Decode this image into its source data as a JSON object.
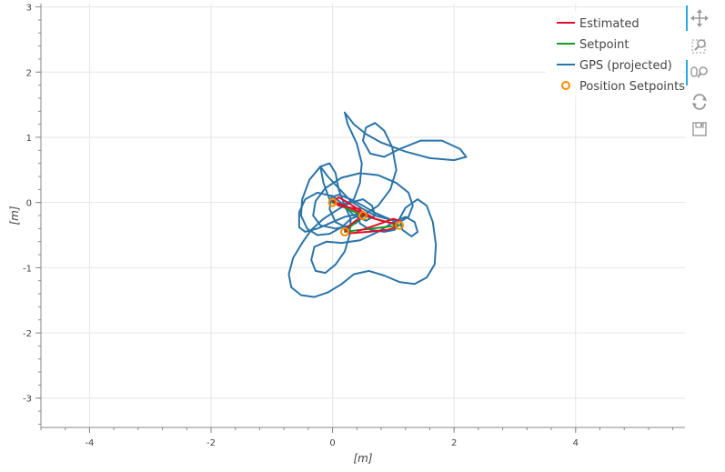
{
  "chart_data": {
    "type": "line",
    "title": "",
    "xlabel": "[m]",
    "ylabel": "[m]",
    "xlim": [
      -4.8,
      5.8
    ],
    "ylim": [
      -3.45,
      3.05
    ],
    "x_ticks": [
      -4,
      -2,
      0,
      2,
      4
    ],
    "y_ticks": [
      -3,
      -2,
      -1,
      0,
      1,
      2,
      3
    ],
    "x_tick_labels": [
      "-4",
      "-2",
      "0",
      "2",
      "4"
    ],
    "y_tick_labels": [
      "-3",
      "-2",
      "-1",
      "0",
      "1",
      "2",
      "3"
    ],
    "grid": true,
    "legend_position": "top-right",
    "series": [
      {
        "name": "Estimated",
        "kind": "line",
        "color": "#e0102a",
        "points": [
          [
            0.0,
            0.02
          ],
          [
            0.2,
            -0.05
          ],
          [
            0.45,
            -0.15
          ],
          [
            0.6,
            -0.22
          ],
          [
            0.8,
            -0.28
          ],
          [
            1.0,
            -0.32
          ],
          [
            1.05,
            -0.38
          ],
          [
            0.9,
            -0.42
          ],
          [
            0.6,
            -0.45
          ],
          [
            0.3,
            -0.47
          ],
          [
            0.2,
            -0.42
          ],
          [
            0.35,
            -0.3
          ],
          [
            0.5,
            -0.2
          ],
          [
            0.45,
            -0.1
          ],
          [
            0.3,
            -0.08
          ],
          [
            0.1,
            -0.05
          ],
          [
            0.02,
            0.02
          ],
          [
            0.1,
            0.08
          ],
          [
            0.25,
            0.0
          ],
          [
            0.45,
            -0.12
          ],
          [
            0.7,
            -0.25
          ],
          [
            0.9,
            -0.3
          ],
          [
            1.05,
            -0.33
          ],
          [
            1.1,
            -0.28
          ],
          [
            1.0,
            -0.25
          ],
          [
            0.8,
            -0.32
          ],
          [
            0.55,
            -0.4
          ],
          [
            0.4,
            -0.44
          ]
        ]
      },
      {
        "name": "Setpoint",
        "kind": "line",
        "color": "#1a9a1a",
        "points": [
          [
            0.0,
            0.0
          ],
          [
            0.5,
            -0.2
          ],
          [
            1.1,
            -0.35
          ],
          [
            0.2,
            -0.45
          ],
          [
            0.5,
            -0.2
          ],
          [
            0.0,
            0.0
          ],
          [
            0.5,
            -0.2
          ],
          [
            1.1,
            -0.35
          ],
          [
            0.5,
            -0.2
          ],
          [
            0.2,
            -0.45
          ],
          [
            0.5,
            -0.2
          ]
        ]
      },
      {
        "name": "GPS (projected)",
        "kind": "line",
        "color": "#2b74a8",
        "points": [
          [
            0.5,
            -0.2
          ],
          [
            0.75,
            -0.05
          ],
          [
            0.95,
            0.2
          ],
          [
            1.05,
            0.5
          ],
          [
            0.98,
            0.85
          ],
          [
            0.85,
            1.1
          ],
          [
            0.7,
            1.22
          ],
          [
            0.55,
            1.15
          ],
          [
            0.5,
            0.95
          ],
          [
            0.62,
            0.75
          ],
          [
            0.85,
            0.7
          ],
          [
            1.1,
            0.82
          ],
          [
            1.45,
            0.95
          ],
          [
            1.8,
            0.95
          ],
          [
            2.1,
            0.82
          ],
          [
            2.2,
            0.7
          ],
          [
            2.0,
            0.65
          ],
          [
            1.6,
            0.68
          ],
          [
            1.2,
            0.78
          ],
          [
            0.8,
            0.92
          ],
          [
            0.55,
            1.05
          ],
          [
            0.35,
            1.2
          ],
          [
            0.2,
            1.38
          ],
          [
            0.25,
            1.2
          ],
          [
            0.4,
            0.9
          ],
          [
            0.48,
            0.6
          ],
          [
            0.45,
            0.3
          ],
          [
            0.35,
            0.05
          ],
          [
            0.15,
            -0.05
          ],
          [
            -0.05,
            0.05
          ],
          [
            -0.15,
            0.3
          ],
          [
            -0.2,
            0.55
          ],
          [
            -0.08,
            0.4
          ],
          [
            0.12,
            0.2
          ],
          [
            0.3,
            0.02
          ],
          [
            0.5,
            -0.1
          ],
          [
            0.7,
            -0.2
          ],
          [
            0.9,
            -0.25
          ],
          [
            1.1,
            -0.3
          ],
          [
            1.25,
            -0.22
          ],
          [
            1.32,
            -0.05
          ],
          [
            1.25,
            0.15
          ],
          [
            1.05,
            0.3
          ],
          [
            0.75,
            0.42
          ],
          [
            0.45,
            0.45
          ],
          [
            0.15,
            0.38
          ],
          [
            -0.12,
            0.22
          ],
          [
            -0.28,
            0.02
          ],
          [
            -0.32,
            -0.2
          ],
          [
            -0.2,
            -0.35
          ],
          [
            0.05,
            -0.4
          ],
          [
            0.3,
            -0.35
          ],
          [
            0.45,
            -0.25
          ],
          [
            0.4,
            -0.18
          ],
          [
            0.2,
            -0.22
          ],
          [
            0.0,
            -0.3
          ],
          [
            -0.25,
            -0.4
          ],
          [
            -0.45,
            -0.45
          ],
          [
            -0.55,
            -0.38
          ],
          [
            -0.55,
            -0.15
          ],
          [
            -0.45,
            0.05
          ],
          [
            -0.25,
            0.15
          ],
          [
            0.0,
            0.1
          ],
          [
            0.2,
            -0.05
          ],
          [
            0.3,
            -0.25
          ],
          [
            0.28,
            -0.5
          ],
          [
            0.2,
            -0.75
          ],
          [
            0.05,
            -0.95
          ],
          [
            -0.12,
            -1.08
          ],
          [
            -0.28,
            -1.05
          ],
          [
            -0.35,
            -0.88
          ],
          [
            -0.3,
            -0.68
          ],
          [
            -0.1,
            -0.6
          ],
          [
            0.15,
            -0.62
          ],
          [
            0.45,
            -0.58
          ],
          [
            0.75,
            -0.45
          ],
          [
            1.0,
            -0.3
          ],
          [
            1.2,
            -0.22
          ],
          [
            1.35,
            -0.3
          ],
          [
            1.4,
            -0.45
          ],
          [
            1.3,
            -0.52
          ],
          [
            1.15,
            -0.42
          ],
          [
            1.1,
            -0.25
          ],
          [
            1.2,
            -0.08
          ],
          [
            1.4,
            0.05
          ],
          [
            1.55,
            -0.05
          ],
          [
            1.65,
            -0.3
          ],
          [
            1.7,
            -0.65
          ],
          [
            1.68,
            -0.95
          ],
          [
            1.55,
            -1.15
          ],
          [
            1.35,
            -1.25
          ],
          [
            1.1,
            -1.22
          ],
          [
            0.85,
            -1.12
          ],
          [
            0.6,
            -1.05
          ],
          [
            0.35,
            -1.1
          ],
          [
            0.15,
            -1.25
          ],
          [
            -0.08,
            -1.38
          ],
          [
            -0.3,
            -1.45
          ],
          [
            -0.52,
            -1.42
          ],
          [
            -0.68,
            -1.3
          ],
          [
            -0.72,
            -1.1
          ],
          [
            -0.65,
            -0.85
          ],
          [
            -0.5,
            -0.62
          ],
          [
            -0.35,
            -0.42
          ],
          [
            -0.15,
            -0.25
          ],
          [
            0.1,
            -0.1
          ],
          [
            0.3,
            0.0
          ],
          [
            0.5,
            0.05
          ],
          [
            0.65,
            -0.05
          ],
          [
            0.7,
            -0.2
          ],
          [
            0.55,
            -0.28
          ],
          [
            0.35,
            -0.2
          ],
          [
            0.2,
            -0.05
          ],
          [
            0.1,
            0.2
          ],
          [
            0.05,
            0.45
          ],
          [
            -0.05,
            0.6
          ],
          [
            -0.2,
            0.55
          ],
          [
            -0.38,
            0.35
          ],
          [
            -0.5,
            0.05
          ],
          [
            -0.52,
            -0.2
          ],
          [
            -0.42,
            -0.4
          ],
          [
            -0.25,
            -0.5
          ],
          [
            -0.05,
            -0.48
          ],
          [
            0.15,
            -0.38
          ],
          [
            0.3,
            -0.25
          ],
          [
            0.45,
            -0.2
          ],
          [
            0.5,
            -0.22
          ],
          [
            0.38,
            -0.32
          ],
          [
            0.22,
            -0.38
          ],
          [
            0.05,
            -0.3
          ],
          [
            -0.05,
            -0.1
          ],
          [
            -0.02,
            0.08
          ],
          [
            0.1,
            0.12
          ],
          [
            0.3,
            0.05
          ],
          [
            0.5,
            -0.05
          ],
          [
            0.68,
            -0.15
          ],
          [
            0.85,
            -0.22
          ],
          [
            1.0,
            -0.28
          ],
          [
            1.08,
            -0.35
          ],
          [
            1.02,
            -0.42
          ],
          [
            0.85,
            -0.45
          ],
          [
            0.62,
            -0.42
          ],
          [
            0.45,
            -0.32
          ],
          [
            0.42,
            -0.2
          ],
          [
            0.5,
            -0.15
          ]
        ]
      },
      {
        "name": "Position Setpoints",
        "kind": "scatter",
        "color": "#ff8c00",
        "points": [
          [
            0.0,
            0.0
          ],
          [
            0.5,
            -0.2
          ],
          [
            1.1,
            -0.35
          ],
          [
            0.2,
            -0.45
          ]
        ]
      }
    ]
  },
  "toolbar": {
    "tools": [
      {
        "name": "pan-icon",
        "active": true
      },
      {
        "name": "box-zoom-icon",
        "active": false
      },
      {
        "name": "wheel-zoom-icon",
        "active": true
      },
      {
        "name": "reset-icon",
        "active": false
      },
      {
        "name": "save-icon",
        "active": false
      }
    ]
  }
}
